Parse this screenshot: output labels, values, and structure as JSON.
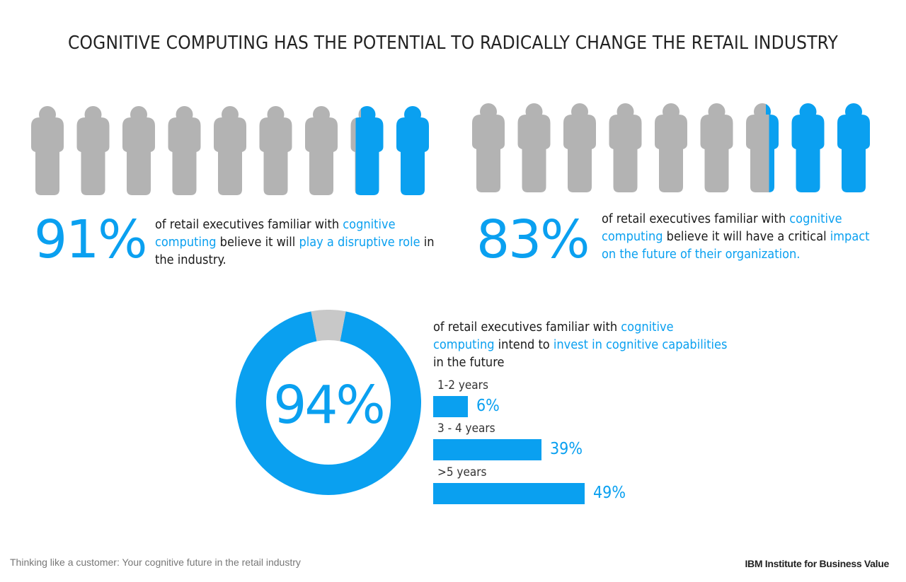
{
  "title": "COGNITIVE COMPUTING HAS THE POTENTIAL TO RADICALLY CHANGE THE RETAIL INDUSTRY",
  "colors": {
    "accent": "#0aa0f0",
    "neutral": "#b3b3b3",
    "text": "#1a1a1a"
  },
  "stats": [
    {
      "value": "91%",
      "text_parts": [
        {
          "t": "of retail executives familiar with ",
          "hl": false
        },
        {
          "t": "cognitive computing",
          "hl": true
        },
        {
          "t": " believe it will ",
          "hl": false
        },
        {
          "t": "play a disruptive role",
          "hl": true
        },
        {
          "t": " in the industry.",
          "hl": false
        }
      ]
    },
    {
      "value": "83%",
      "text_parts": [
        {
          "t": "of retail executives familiar with ",
          "hl": false
        },
        {
          "t": "cognitive computing",
          "hl": true
        },
        {
          "t": " believe it will have a critical ",
          "hl": false
        },
        {
          "t": "impact on the future of their organization.",
          "hl": true
        }
      ]
    }
  ],
  "donut": {
    "value": "94%"
  },
  "invest_text_parts": [
    {
      "t": "of retail executives familiar with ",
      "hl": false
    },
    {
      "t": "cognitive computing",
      "hl": true
    },
    {
      "t": " intend to ",
      "hl": false
    },
    {
      "t": "invest in cognitive capabilities",
      "hl": true
    },
    {
      "t": " in the future",
      "hl": false
    }
  ],
  "chart_data": [
    {
      "type": "pictogram",
      "icons": 9,
      "value": 91,
      "unit": "%"
    },
    {
      "type": "pictogram",
      "icons": 9,
      "value": 83,
      "unit": "%"
    },
    {
      "type": "pie",
      "categories": [
        "",
        ""
      ],
      "values": [
        94,
        6
      ],
      "unit": "%"
    },
    {
      "type": "bar",
      "orientation": "horizontal",
      "categories": [
        "1-2 years",
        "3 - 4 years",
        ">5 years"
      ],
      "values": [
        6,
        39,
        49
      ],
      "labels": [
        "6%",
        "39%",
        "49%"
      ],
      "unit": "%"
    }
  ],
  "footer": {
    "left": "Thinking like a customer: Your cognitive future in the retail industry",
    "right": "IBM Institute for Business Value"
  }
}
